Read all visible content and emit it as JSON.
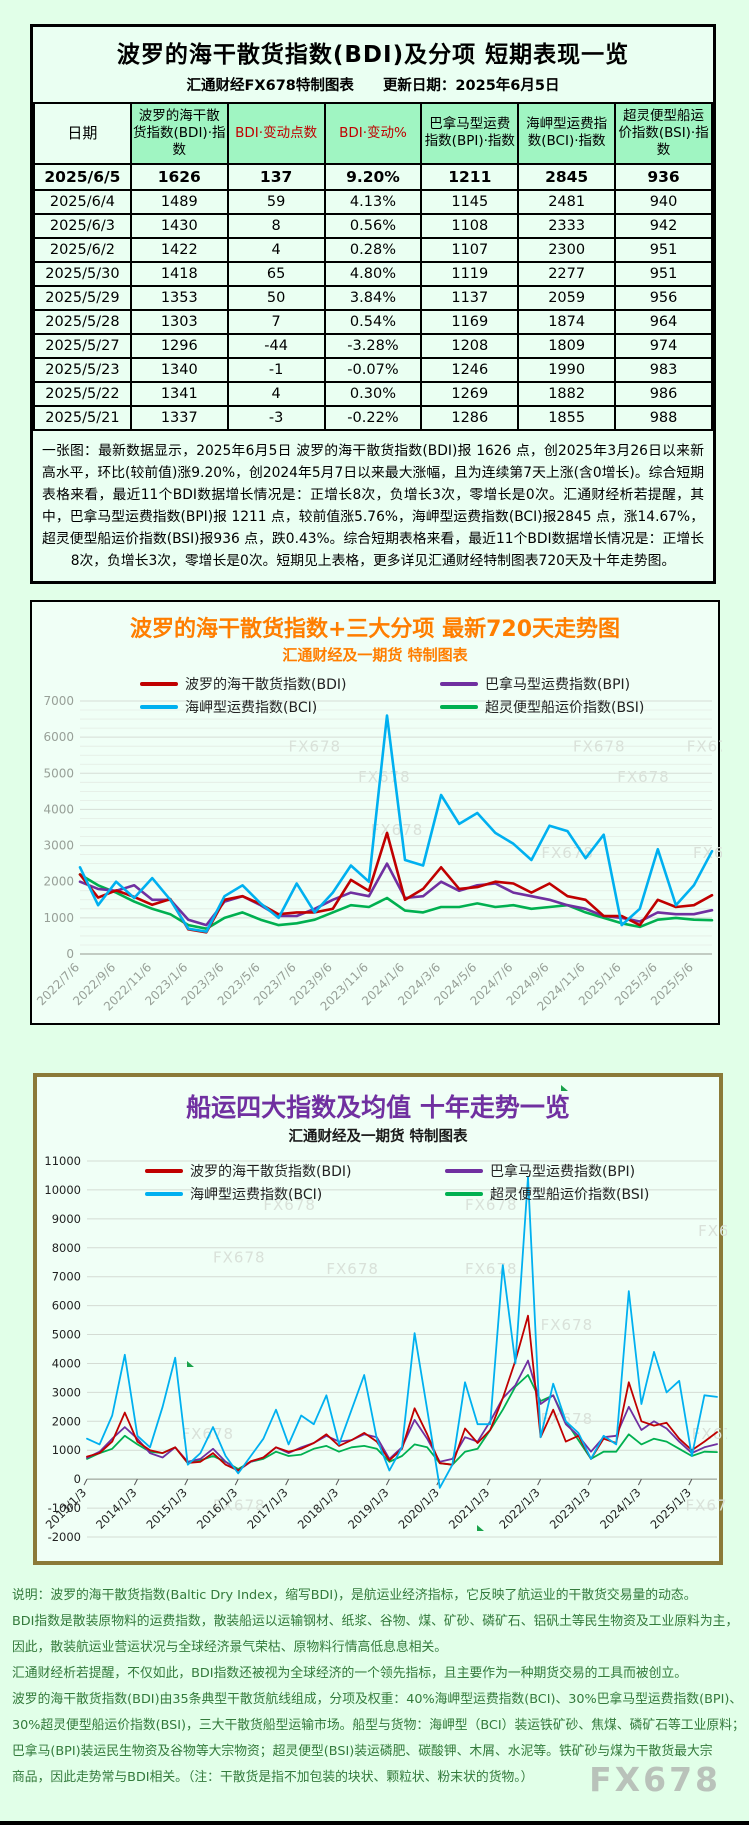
{
  "page": {
    "watermark": "FX678"
  },
  "report": {
    "title": "波罗的海干散货指数(BDI)及分项 短期表现一览",
    "subtitle_brand": "汇通财经FX678特制图表",
    "subtitle_update": "更新日期：2025年6月5日",
    "table": {
      "headers": [
        "日期",
        "波罗的海干散货指数(BDI)·指数",
        "BDI·变动点数",
        "BDI·变动%",
        "巴拿马型运费指数(BPI)·指数",
        "海岬型运费指数(BCI)·指数",
        "超灵便型船运价指数(BSI)·指数"
      ],
      "rows": [
        [
          "2025/6/5",
          "1626",
          "137",
          "9.20%",
          "1211",
          "2845",
          "936"
        ],
        [
          "2025/6/4",
          "1489",
          "59",
          "4.13%",
          "1145",
          "2481",
          "940"
        ],
        [
          "2025/6/3",
          "1430",
          "8",
          "0.56%",
          "1108",
          "2333",
          "942"
        ],
        [
          "2025/6/2",
          "1422",
          "4",
          "0.28%",
          "1107",
          "2300",
          "951"
        ],
        [
          "2025/5/30",
          "1418",
          "65",
          "4.80%",
          "1119",
          "2277",
          "951"
        ],
        [
          "2025/5/29",
          "1353",
          "50",
          "3.84%",
          "1137",
          "2059",
          "956"
        ],
        [
          "2025/5/28",
          "1303",
          "7",
          "0.54%",
          "1169",
          "1874",
          "964"
        ],
        [
          "2025/5/27",
          "1296",
          "-44",
          "-3.28%",
          "1208",
          "1809",
          "974"
        ],
        [
          "2025/5/23",
          "1340",
          "-1",
          "-0.07%",
          "1246",
          "1990",
          "983"
        ],
        [
          "2025/5/22",
          "1341",
          "4",
          "0.30%",
          "1269",
          "1882",
          "986"
        ],
        [
          "2025/5/21",
          "1337",
          "-3",
          "-0.22%",
          "1286",
          "1855",
          "988"
        ]
      ]
    },
    "summary": "一张图：最新数据显示，2025年6月5日 波罗的海干散货指数(BDI)报 1626 点，创2025年3月26日以来新高水平，环比(较前值)涨9.20%，创2024年5月7日以来最大涨幅，且为连续第7天上涨(含0增长)。综合短期表格来看，最近11个BDI数据增长情况是：正增长8次，负增长3次，零增长是0次。汇通财经析若提醒，其中，巴拿马型运费指数(BPI)报 1211 点，较前值涨5.76%，海岬型运费指数(BCI)报2845 点，涨14.67%，超灵便型船运价指数(BSI)报936 点，跌0.43%。综合短期表格来看，最近11个BDI数据增长情况是：正增长8次，负增长3次，零增长是0次。短期见上表格，更多详见汇通财经特制图表720天及十年走势图。"
  },
  "chart_data": [
    {
      "type": "line",
      "title": "波罗的海干散货指数+三大分项  最新720天走势图",
      "subtitle": "汇通财经及一期货 特制图表",
      "ylim": [
        0,
        7000
      ],
      "ytick_step": 1000,
      "grid": "on",
      "legend_position": "top",
      "x_tick_labels": [
        "2022/7/6",
        "2022/9/6",
        "2022/11/6",
        "2023/1/6",
        "2023/3/6",
        "2023/5/6",
        "2023/7/6",
        "2023/9/6",
        "2023/11/6",
        "2024/1/6",
        "2024/3/6",
        "2024/5/6",
        "2024/7/6",
        "2024/9/6",
        "2024/11/6",
        "2025/1/6",
        "2025/3/6",
        "2025/5/6"
      ],
      "series": [
        {
          "name": "波罗的海干散货指数(BDI)",
          "color": "#c00000",
          "values": [
            2200,
            1560,
            1760,
            1580,
            1360,
            1520,
            680,
            600,
            1500,
            1600,
            1380,
            1100,
            1150,
            1150,
            1250,
            2050,
            1750,
            3350,
            1500,
            1800,
            2400,
            1800,
            1850,
            2000,
            1950,
            1700,
            1950,
            1600,
            1500,
            1050,
            1050,
            800,
            1500,
            1300,
            1350,
            1626
          ]
        },
        {
          "name": "巴拿马型运费指数(BPI)",
          "color": "#7030a0",
          "values": [
            2000,
            1800,
            1750,
            1900,
            1500,
            1500,
            950,
            800,
            1450,
            1600,
            1350,
            1050,
            1050,
            1250,
            1500,
            1700,
            1600,
            2500,
            1550,
            1600,
            2000,
            1750,
            1900,
            1950,
            1700,
            1600,
            1500,
            1350,
            1250,
            1050,
            1000,
            900,
            1150,
            1100,
            1100,
            1211
          ]
        },
        {
          "name": "海岬型运费指数(BCI)",
          "color": "#00b0f0",
          "values": [
            2400,
            1350,
            2000,
            1550,
            2100,
            1500,
            700,
            620,
            1600,
            1900,
            1400,
            1000,
            1950,
            1150,
            1700,
            2450,
            2000,
            6600,
            2600,
            2450,
            4400,
            3600,
            3900,
            3350,
            3050,
            2600,
            3550,
            3400,
            2650,
            3300,
            800,
            1250,
            2900,
            1350,
            1900,
            2845
          ]
        },
        {
          "name": "超灵便型船运价指数(BSI)",
          "color": "#00b050",
          "values": [
            2200,
            1900,
            1700,
            1450,
            1250,
            1100,
            800,
            700,
            1000,
            1150,
            950,
            800,
            850,
            950,
            1150,
            1350,
            1300,
            1550,
            1200,
            1150,
            1300,
            1300,
            1400,
            1300,
            1350,
            1250,
            1300,
            1350,
            1150,
            1000,
            850,
            750,
            950,
            1000,
            950,
            936
          ]
        }
      ]
    },
    {
      "type": "line",
      "title": "船运四大指数及均值 十年走势一览",
      "subtitle": "汇通财经及一期货 特制图表",
      "ylim": [
        -2000,
        11000
      ],
      "ytick_step": 1000,
      "grid": "on",
      "legend_position": "top",
      "x_tick_labels": [
        "2013/1/3",
        "2014/1/3",
        "2015/1/3",
        "2016/1/3",
        "2017/1/3",
        "2018/1/3",
        "2019/1/3",
        "2020/1/3",
        "2021/1/3",
        "2022/1/3",
        "2023/1/3",
        "2024/1/3",
        "2025/1/3"
      ],
      "series": [
        {
          "name": "波罗的海干散货指数(BDI)",
          "color": "#c00000",
          "values": [
            780,
            900,
            1300,
            2300,
            1300,
            1000,
            900,
            1100,
            560,
            600,
            900,
            500,
            300,
            620,
            750,
            1100,
            950,
            1050,
            1250,
            1550,
            1150,
            1350,
            1600,
            1300,
            650,
            1050,
            2450,
            1550,
            550,
            500,
            1750,
            1250,
            1700,
            2800,
            4100,
            5650,
            1450,
            2400,
            1300,
            1500,
            700,
            1400,
            1250,
            3350,
            2000,
            1850,
            1950,
            1400,
            1000,
            1300,
            1626
          ]
        },
        {
          "name": "巴拿马型运费指数(BPI)",
          "color": "#7030a0",
          "values": [
            740,
            950,
            1400,
            1800,
            1400,
            900,
            750,
            1100,
            600,
            700,
            1050,
            600,
            300,
            600,
            750,
            1100,
            900,
            1100,
            1250,
            1500,
            1300,
            1350,
            1550,
            1450,
            700,
            1100,
            2050,
            1400,
            600,
            700,
            1450,
            1300,
            2000,
            2800,
            3250,
            4100,
            2600,
            2900,
            1900,
            1500,
            950,
            1450,
            1500,
            2500,
            1700,
            2000,
            1750,
            1300,
            900,
            1100,
            1211
          ]
        },
        {
          "name": "海岬型运费指数(BCI)",
          "color": "#00b0f0",
          "values": [
            1400,
            1200,
            2200,
            4300,
            1500,
            1100,
            2500,
            4200,
            500,
            900,
            1800,
            800,
            200,
            800,
            1400,
            2400,
            1200,
            2200,
            1900,
            2900,
            1200,
            2400,
            3600,
            1400,
            300,
            1100,
            5050,
            2400,
            -300,
            500,
            3350,
            1900,
            1900,
            7400,
            4000,
            10450,
            1450,
            3300,
            2000,
            1600,
            700,
            1500,
            1200,
            6500,
            2600,
            4400,
            3000,
            3400,
            800,
            2900,
            2845
          ]
        },
        {
          "name": "超灵便型船运价指数(BSI)",
          "color": "#00b050",
          "values": [
            700,
            900,
            1050,
            1500,
            1200,
            950,
            900,
            1100,
            550,
            650,
            800,
            600,
            350,
            600,
            700,
            950,
            800,
            850,
            1050,
            1150,
            950,
            1100,
            1150,
            1050,
            600,
            800,
            1200,
            1100,
            550,
            500,
            950,
            1050,
            1700,
            2400,
            3200,
            3600,
            2700,
            2900,
            2000,
            1350,
            700,
            950,
            950,
            1550,
            1200,
            1400,
            1300,
            1050,
            800,
            950,
            936
          ]
        }
      ]
    }
  ],
  "footnote": {
    "lines": [
      "说明：波罗的海干散货指数(Baltic Dry Index，缩写BDI)，是航运业经济指标，它反映了航运业的干散货交易量的动态。",
      "BDI指数是散装原物料的运费指数，散装船运以运输钢材、纸浆、谷物、煤、矿砂、磷矿石、铝矾土等民生物资及工业原料为主，",
      "因此，散装航运业营运状况与全球经济景气荣枯、原物料行情高低息息相关。",
      "汇通财经析若提醒，不仅如此，BDI指数还被视为全球经济的一个领先指标，且主要作为一种期货交易的工具而被创立。",
      "波罗的海干散货指数(BDI)由35条典型干散货航线组成，分项及权重：40%海岬型运费指数(BCI)、30%巴拿马型运费指数(BPI)、",
      "30%超灵便型船运价指数(BSI)，三大干散货船型运输市场。船型与货物：海岬型（BCI）装运铁矿砂、焦煤、磷矿石等工业原料；",
      "巴拿马(BPI)装运民生物资及谷物等大宗物资；超灵便型(BSI)装运磷肥、碳酸钾、木屑、水泥等。铁矿砂与煤为干散货最大宗",
      "商品，因此走势常与BDI相关。（注：干散货是指不加包装的块状、颗粒状、粉末状的货物。）"
    ],
    "logo": "FX678"
  }
}
